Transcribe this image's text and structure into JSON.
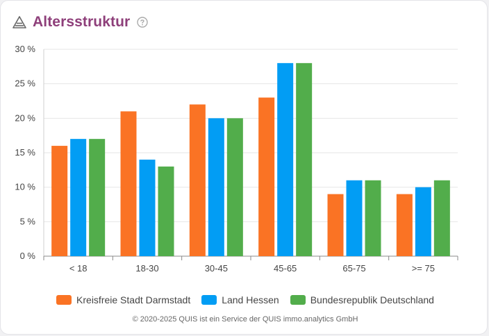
{
  "header": {
    "title": "Altersstruktur",
    "icon": "triangle-steps-icon",
    "help_icon": "help-circle-icon"
  },
  "colors": {
    "title": "#8e3f7a",
    "grid": "#e6e6e6",
    "axis": "#888888"
  },
  "chart_data": {
    "type": "bar",
    "title": "Altersstruktur",
    "categories": [
      "< 18",
      "18-30",
      "30-45",
      "45-65",
      "65-75",
      ">= 75"
    ],
    "series": [
      {
        "name": "Kreisfreie Stadt Darmstadt",
        "color": "#fa7324",
        "values": [
          16,
          21,
          22,
          23,
          9,
          9
        ]
      },
      {
        "name": "Land Hessen",
        "color": "#029df4",
        "values": [
          17,
          14,
          20,
          28,
          11,
          10
        ]
      },
      {
        "name": "Bundesrepublik Deutschland",
        "color": "#52ad4b",
        "values": [
          17,
          13,
          20,
          28,
          11,
          11
        ]
      }
    ],
    "y_ticks": [
      0,
      5,
      10,
      15,
      20,
      25,
      30
    ],
    "y_tick_labels": [
      "0 %",
      "5 %",
      "10 %",
      "15 %",
      "20 %",
      "25 %",
      "30 %"
    ],
    "ylim": [
      0,
      30
    ],
    "xlabel": "",
    "ylabel": "",
    "grid": true,
    "legend": "bottom-center"
  },
  "footer": {
    "text": "© 2020-2025 QUIS ist ein Service der QUIS immo.analytics GmbH"
  }
}
